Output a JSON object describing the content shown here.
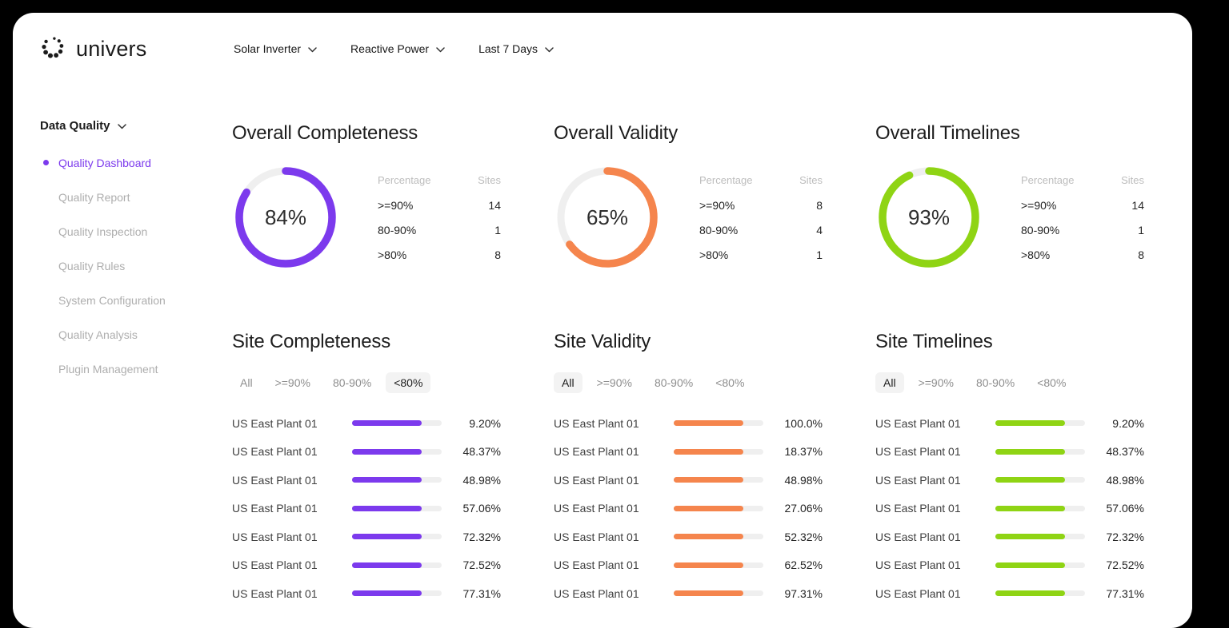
{
  "brand": {
    "name": "univers"
  },
  "header": {
    "filters": [
      {
        "label": "Solar Inverter"
      },
      {
        "label": "Reactive Power"
      },
      {
        "label": "Last 7 Days"
      }
    ]
  },
  "sidebar": {
    "title": "Data Quality",
    "items": [
      {
        "label": "Quality Dashboard",
        "active": true
      },
      {
        "label": "Quality Report",
        "active": false
      },
      {
        "label": "Quality Inspection",
        "active": false
      },
      {
        "label": "Quality Rules",
        "active": false
      },
      {
        "label": "System Configuration",
        "active": false
      },
      {
        "label": "Quality Analysis",
        "active": false
      },
      {
        "label": "Plugin Management",
        "active": false
      }
    ]
  },
  "colors": {
    "purple": "#7C3AED",
    "orange": "#F5854D",
    "green": "#8FD414",
    "track": "#EFEFEF"
  },
  "chart_data": {
    "filter_options": [
      "All",
      ">=90%",
      "80-90%",
      "<80%"
    ],
    "overview": [
      {
        "type": "donut",
        "title": "Overall Completeness",
        "percent": 84,
        "color": "#7C3AED",
        "table": {
          "headers": [
            "Percentage",
            "Sites"
          ],
          "rows": [
            [
              ">=90%",
              "14"
            ],
            [
              "80-90%",
              "1"
            ],
            [
              ">80%",
              "8"
            ]
          ]
        }
      },
      {
        "type": "donut",
        "title": "Overall Validity",
        "percent": 65,
        "color": "#F5854D",
        "table": {
          "headers": [
            "Percentage",
            "Sites"
          ],
          "rows": [
            [
              ">=90%",
              "8"
            ],
            [
              "80-90%",
              "4"
            ],
            [
              ">80%",
              "1"
            ]
          ]
        }
      },
      {
        "type": "donut",
        "title": "Overall Timelines",
        "percent": 93,
        "color": "#8FD414",
        "table": {
          "headers": [
            "Percentage",
            "Sites"
          ],
          "rows": [
            [
              ">=90%",
              "14"
            ],
            [
              "80-90%",
              "1"
            ],
            [
              ">80%",
              "8"
            ]
          ]
        }
      }
    ],
    "sites": [
      {
        "type": "bar-list",
        "title": "Site Completeness",
        "active_filter": "<80%",
        "color": "#7C3AED",
        "rows": [
          {
            "name": "US East Plant 01",
            "value": "9.20%"
          },
          {
            "name": "US East Plant 01",
            "value": "48.37%"
          },
          {
            "name": "US East Plant 01",
            "value": "48.98%"
          },
          {
            "name": "US East Plant 01",
            "value": "57.06%"
          },
          {
            "name": "US East Plant 01",
            "value": "72.32%"
          },
          {
            "name": "US East Plant 01",
            "value": "72.52%"
          },
          {
            "name": "US East Plant 01",
            "value": "77.31%"
          }
        ]
      },
      {
        "type": "bar-list",
        "title": "Site Validity",
        "active_filter": "All",
        "color": "#F5854D",
        "rows": [
          {
            "name": "US East Plant 01",
            "value": "100.0%"
          },
          {
            "name": "US East Plant 01",
            "value": "18.37%"
          },
          {
            "name": "US East Plant 01",
            "value": "48.98%"
          },
          {
            "name": "US East Plant 01",
            "value": "27.06%"
          },
          {
            "name": "US East Plant 01",
            "value": "52.32%"
          },
          {
            "name": "US East Plant 01",
            "value": "62.52%"
          },
          {
            "name": "US East Plant 01",
            "value": "97.31%"
          }
        ]
      },
      {
        "type": "bar-list",
        "title": "Site Timelines",
        "active_filter": "All",
        "color": "#8FD414",
        "rows": [
          {
            "name": "US East Plant 01",
            "value": "9.20%"
          },
          {
            "name": "US East Plant 01",
            "value": "48.37%"
          },
          {
            "name": "US East Plant 01",
            "value": "48.98%"
          },
          {
            "name": "US East Plant 01",
            "value": "57.06%"
          },
          {
            "name": "US East Plant 01",
            "value": "72.32%"
          },
          {
            "name": "US East Plant 01",
            "value": "72.52%"
          },
          {
            "name": "US East Plant 01",
            "value": "77.31%"
          }
        ]
      }
    ]
  }
}
